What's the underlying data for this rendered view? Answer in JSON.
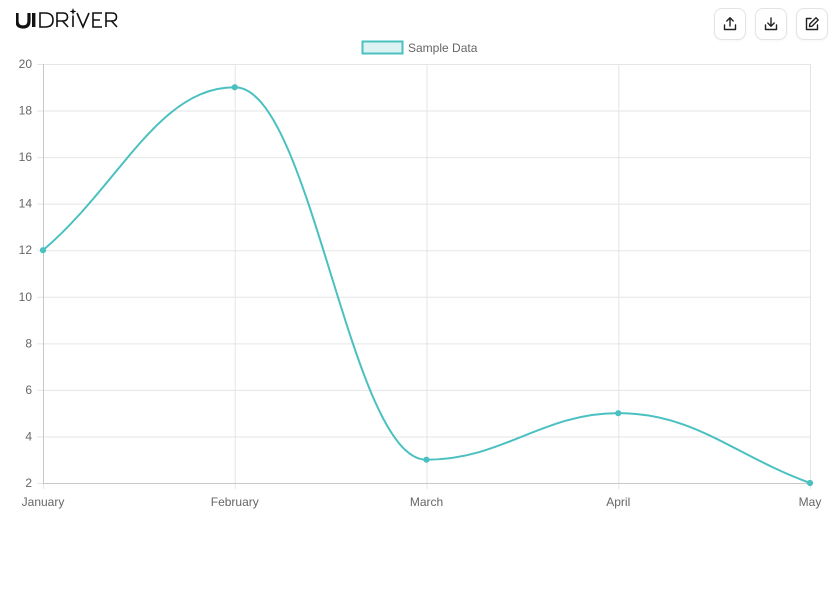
{
  "brand": {
    "name": "UIDRIVER"
  },
  "toolbar": {
    "buttons": [
      {
        "name": "upload-button",
        "icon": "upload-icon"
      },
      {
        "name": "download-button",
        "icon": "download-icon"
      },
      {
        "name": "edit-button",
        "icon": "edit-icon"
      }
    ]
  },
  "chart_data": {
    "type": "line",
    "categories": [
      "January",
      "February",
      "March",
      "April",
      "May"
    ],
    "series": [
      {
        "name": "Sample Data",
        "values": [
          12,
          19,
          3,
          5,
          2
        ],
        "color": "#4bc0c0",
        "fill": "#ddf3f3"
      }
    ],
    "yticks": [
      2,
      4,
      6,
      8,
      10,
      12,
      14,
      16,
      18,
      20
    ],
    "ylim": [
      2,
      20
    ],
    "grid": true,
    "legend": "top-center"
  }
}
